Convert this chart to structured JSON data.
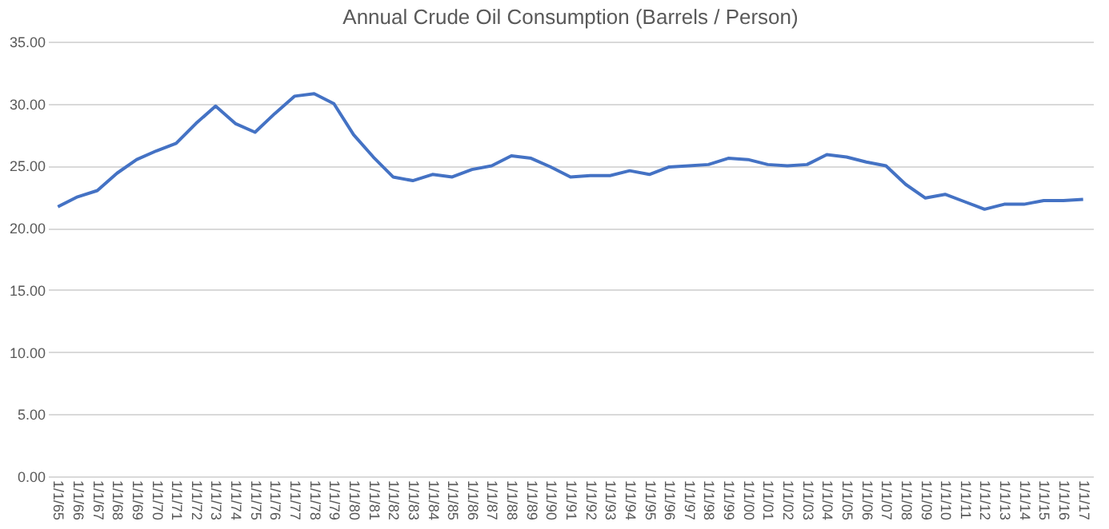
{
  "chart_data": {
    "type": "line",
    "title": "Annual Crude Oil Consumption (Barrels / Person)",
    "categories": [
      "1/1/65",
      "1/1/66",
      "1/1/67",
      "1/1/68",
      "1/1/69",
      "1/1/70",
      "1/1/71",
      "1/1/72",
      "1/1/73",
      "1/1/74",
      "1/1/75",
      "1/1/76",
      "1/1/77",
      "1/1/78",
      "1/1/79",
      "1/1/80",
      "1/1/81",
      "1/1/82",
      "1/1/83",
      "1/1/84",
      "1/1/85",
      "1/1/86",
      "1/1/87",
      "1/1/88",
      "1/1/89",
      "1/1/90",
      "1/1/91",
      "1/1/92",
      "1/1/93",
      "1/1/94",
      "1/1/95",
      "1/1/96",
      "1/1/97",
      "1/1/98",
      "1/1/99",
      "1/1/00",
      "1/1/01",
      "1/1/02",
      "1/1/03",
      "1/1/04",
      "1/1/05",
      "1/1/06",
      "1/1/07",
      "1/1/08",
      "1/1/09",
      "1/1/10",
      "1/1/11",
      "1/1/12",
      "1/1/13",
      "1/1/14",
      "1/1/15",
      "1/1/16",
      "1/1/17"
    ],
    "series": [
      {
        "color": "#4472c4",
        "values": [
          21.7,
          22.5,
          23.0,
          24.4,
          25.5,
          26.2,
          26.8,
          28.4,
          29.8,
          28.4,
          27.7,
          29.2,
          30.6,
          30.8,
          30.0,
          27.5,
          25.7,
          24.1,
          23.8,
          24.3,
          24.1,
          24.7,
          25.0,
          25.8,
          25.6,
          24.9,
          24.1,
          24.2,
          24.2,
          24.6,
          24.3,
          24.9,
          25.0,
          25.1,
          25.6,
          25.5,
          25.1,
          25.0,
          25.1,
          25.9,
          25.7,
          25.3,
          25.0,
          23.5,
          22.4,
          22.7,
          22.1,
          21.5,
          21.9,
          21.9,
          22.2,
          22.2,
          22.3
        ]
      }
    ],
    "ylim": [
      0,
      35
    ],
    "yticks": [
      {
        "value": 0,
        "label": "0.00"
      },
      {
        "value": 5,
        "label": "5.00"
      },
      {
        "value": 10,
        "label": "10.00"
      },
      {
        "value": 15,
        "label": "15.00"
      },
      {
        "value": 20,
        "label": "20.00"
      },
      {
        "value": 25,
        "label": "25.00"
      },
      {
        "value": 30,
        "label": "30.00"
      },
      {
        "value": 35,
        "label": "35.00"
      }
    ],
    "grid": "y",
    "marker": "none",
    "line_style": "solid"
  }
}
